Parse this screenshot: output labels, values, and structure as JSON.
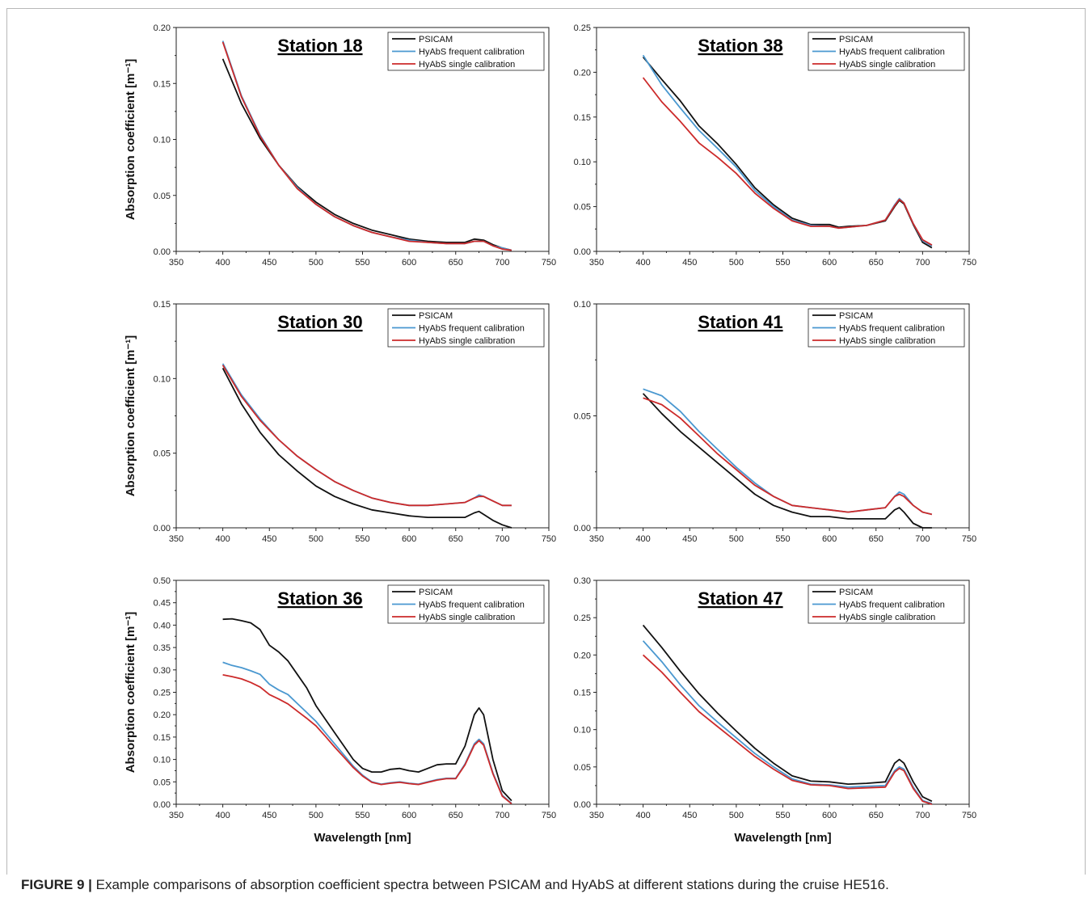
{
  "caption": {
    "label": "FIGURE 9 |",
    "text": " Example comparisons of absorption coefficient spectra between PSICAM and HyAbS at different stations during the cruise HE516."
  },
  "axis_titles": {
    "y": "Absorption coefficient [m⁻¹]",
    "x": "Wavelength [nm]"
  },
  "colors": {
    "PSICAM": "#111111",
    "HyAbS frequent calibration": "#4a98d0",
    "HyAbS single calibration": "#cc2a2a"
  },
  "chart_data": [
    {
      "type": "line",
      "title": "Station 18",
      "xlim": [
        350,
        750
      ],
      "ylim": [
        0,
        0.2
      ],
      "xticks": [
        "350",
        "400",
        "450",
        "500",
        "550",
        "600",
        "650",
        "700",
        "750"
      ],
      "yticks": [
        "0.00",
        "0.05",
        "0.10",
        "0.15",
        "0.20"
      ],
      "legend": "top-right",
      "x": [
        400,
        420,
        440,
        460,
        480,
        500,
        520,
        540,
        560,
        580,
        600,
        620,
        640,
        660,
        670,
        680,
        690,
        700,
        710
      ],
      "series": [
        {
          "name": "PSICAM",
          "values": [
            0.172,
            0.132,
            0.101,
            0.077,
            0.058,
            0.044,
            0.033,
            0.025,
            0.019,
            0.015,
            0.011,
            0.009,
            0.008,
            0.008,
            0.011,
            0.01,
            0.006,
            0.003,
            0.001
          ]
        },
        {
          "name": "HyAbS frequent calibration",
          "values": [
            0.188,
            0.139,
            0.104,
            0.077,
            0.057,
            0.042,
            0.031,
            0.023,
            0.017,
            0.013,
            0.01,
            0.008,
            0.007,
            0.007,
            0.009,
            0.009,
            0.005,
            0.003,
            0.001
          ]
        },
        {
          "name": "HyAbS single calibration",
          "values": [
            0.187,
            0.138,
            0.103,
            0.077,
            0.056,
            0.042,
            0.031,
            0.023,
            0.017,
            0.013,
            0.009,
            0.008,
            0.007,
            0.007,
            0.009,
            0.009,
            0.005,
            0.002,
            0.001
          ]
        }
      ]
    },
    {
      "type": "line",
      "title": "Station 38",
      "xlim": [
        350,
        750
      ],
      "ylim": [
        0,
        0.25
      ],
      "xticks": [
        "350",
        "400",
        "450",
        "500",
        "550",
        "600",
        "650",
        "700",
        "750"
      ],
      "yticks": [
        "0.00",
        "0.05",
        "0.10",
        "0.15",
        "0.20",
        "0.25"
      ],
      "legend": "top-right",
      "x": [
        400,
        420,
        440,
        460,
        480,
        500,
        520,
        540,
        560,
        580,
        600,
        610,
        620,
        640,
        660,
        670,
        675,
        680,
        690,
        700,
        710
      ],
      "series": [
        {
          "name": "PSICAM",
          "values": [
            0.217,
            0.192,
            0.168,
            0.14,
            0.12,
            0.097,
            0.071,
            0.052,
            0.037,
            0.03,
            0.03,
            0.027,
            0.028,
            0.029,
            0.034,
            0.05,
            0.057,
            0.053,
            0.03,
            0.01,
            0.004
          ]
        },
        {
          "name": "HyAbS frequent calibration",
          "values": [
            0.219,
            0.186,
            0.16,
            0.135,
            0.115,
            0.094,
            0.068,
            0.05,
            0.035,
            0.029,
            0.028,
            0.026,
            0.027,
            0.029,
            0.035,
            0.052,
            0.059,
            0.054,
            0.031,
            0.012,
            0.006
          ]
        },
        {
          "name": "HyAbS single calibration",
          "values": [
            0.194,
            0.167,
            0.145,
            0.121,
            0.105,
            0.087,
            0.065,
            0.048,
            0.034,
            0.028,
            0.028,
            0.026,
            0.027,
            0.029,
            0.035,
            0.051,
            0.058,
            0.054,
            0.031,
            0.013,
            0.007
          ]
        }
      ]
    },
    {
      "type": "line",
      "title": "Station 30",
      "xlim": [
        350,
        750
      ],
      "ylim": [
        0,
        0.15
      ],
      "xticks": [
        "350",
        "400",
        "450",
        "500",
        "550",
        "600",
        "650",
        "700",
        "750"
      ],
      "yticks": [
        "0.00",
        "0.05",
        "0.10",
        "0.15"
      ],
      "legend": "top-right",
      "x": [
        400,
        420,
        440,
        460,
        480,
        500,
        520,
        540,
        560,
        580,
        600,
        620,
        640,
        660,
        670,
        675,
        680,
        690,
        700,
        710
      ],
      "series": [
        {
          "name": "PSICAM",
          "values": [
            0.107,
            0.083,
            0.064,
            0.049,
            0.038,
            0.028,
            0.021,
            0.016,
            0.012,
            0.01,
            0.008,
            0.007,
            0.007,
            0.007,
            0.01,
            0.011,
            0.009,
            0.005,
            0.002,
            0.0
          ]
        },
        {
          "name": "HyAbS frequent calibration",
          "values": [
            0.11,
            0.089,
            0.073,
            0.059,
            0.048,
            0.039,
            0.031,
            0.025,
            0.02,
            0.017,
            0.015,
            0.015,
            0.016,
            0.017,
            0.02,
            0.022,
            0.021,
            0.018,
            0.015,
            0.015
          ]
        },
        {
          "name": "HyAbS single calibration",
          "values": [
            0.109,
            0.088,
            0.072,
            0.059,
            0.048,
            0.039,
            0.031,
            0.025,
            0.02,
            0.017,
            0.015,
            0.015,
            0.016,
            0.017,
            0.02,
            0.021,
            0.021,
            0.018,
            0.015,
            0.015
          ]
        }
      ]
    },
    {
      "type": "line",
      "title": "Station 41",
      "xlim": [
        350,
        750
      ],
      "ylim": [
        0,
        0.1
      ],
      "xticks": [
        "350",
        "400",
        "450",
        "500",
        "550",
        "600",
        "650",
        "700",
        "750"
      ],
      "yticks": [
        "0.00",
        "0.05",
        "0.10"
      ],
      "legend": "top-right",
      "x": [
        400,
        420,
        440,
        460,
        480,
        500,
        520,
        540,
        560,
        580,
        600,
        620,
        640,
        660,
        670,
        675,
        680,
        690,
        700,
        710
      ],
      "series": [
        {
          "name": "PSICAM",
          "values": [
            0.06,
            0.051,
            0.043,
            0.036,
            0.029,
            0.022,
            0.015,
            0.01,
            0.007,
            0.005,
            0.005,
            0.004,
            0.004,
            0.004,
            0.008,
            0.009,
            0.007,
            0.002,
            0.0,
            0.0
          ]
        },
        {
          "name": "HyAbS frequent calibration",
          "values": [
            0.062,
            0.059,
            0.052,
            0.043,
            0.035,
            0.027,
            0.02,
            0.014,
            0.01,
            0.009,
            0.008,
            0.007,
            0.008,
            0.009,
            0.014,
            0.016,
            0.015,
            0.01,
            0.007,
            0.006
          ]
        },
        {
          "name": "HyAbS single calibration",
          "values": [
            0.058,
            0.055,
            0.049,
            0.041,
            0.033,
            0.026,
            0.019,
            0.014,
            0.01,
            0.009,
            0.008,
            0.007,
            0.008,
            0.009,
            0.014,
            0.015,
            0.014,
            0.01,
            0.007,
            0.006
          ]
        }
      ]
    },
    {
      "type": "line",
      "title": "Station 36",
      "xlim": [
        350,
        750
      ],
      "ylim": [
        0,
        0.5
      ],
      "xticks": [
        "350",
        "400",
        "450",
        "500",
        "550",
        "600",
        "650",
        "700",
        "750"
      ],
      "yticks": [
        "0.00",
        "0.05",
        "0.10",
        "0.15",
        "0.20",
        "0.25",
        "0.30",
        "0.35",
        "0.40",
        "0.45",
        "0.50"
      ],
      "legend": "top-right",
      "x": [
        400,
        410,
        420,
        430,
        440,
        450,
        460,
        470,
        480,
        490,
        500,
        510,
        520,
        530,
        540,
        550,
        560,
        570,
        580,
        590,
        600,
        610,
        620,
        630,
        640,
        650,
        660,
        670,
        675,
        680,
        690,
        700,
        710
      ],
      "series": [
        {
          "name": "PSICAM",
          "values": [
            0.413,
            0.414,
            0.41,
            0.405,
            0.39,
            0.355,
            0.34,
            0.32,
            0.29,
            0.26,
            0.22,
            0.19,
            0.16,
            0.13,
            0.1,
            0.08,
            0.072,
            0.072,
            0.078,
            0.08,
            0.075,
            0.072,
            0.08,
            0.088,
            0.09,
            0.09,
            0.13,
            0.2,
            0.215,
            0.2,
            0.1,
            0.03,
            0.008
          ]
        },
        {
          "name": "HyAbS frequent calibration",
          "values": [
            0.317,
            0.31,
            0.305,
            0.298,
            0.29,
            0.268,
            0.255,
            0.245,
            0.225,
            0.205,
            0.185,
            0.16,
            0.135,
            0.11,
            0.085,
            0.065,
            0.05,
            0.045,
            0.048,
            0.05,
            0.047,
            0.045,
            0.05,
            0.055,
            0.058,
            0.058,
            0.09,
            0.135,
            0.145,
            0.135,
            0.07,
            0.02,
            0.002
          ]
        },
        {
          "name": "HyAbS single calibration",
          "values": [
            0.289,
            0.285,
            0.28,
            0.272,
            0.262,
            0.245,
            0.235,
            0.224,
            0.208,
            0.192,
            0.175,
            0.152,
            0.128,
            0.105,
            0.082,
            0.063,
            0.049,
            0.044,
            0.047,
            0.049,
            0.046,
            0.044,
            0.049,
            0.054,
            0.057,
            0.057,
            0.088,
            0.132,
            0.142,
            0.132,
            0.068,
            0.018,
            0.001
          ]
        }
      ]
    },
    {
      "type": "line",
      "title": "Station 47",
      "xlim": [
        350,
        750
      ],
      "ylim": [
        0,
        0.3
      ],
      "xticks": [
        "350",
        "400",
        "450",
        "500",
        "550",
        "600",
        "650",
        "700",
        "750"
      ],
      "yticks": [
        "0.00",
        "0.05",
        "0.10",
        "0.15",
        "0.20",
        "0.25",
        "0.30"
      ],
      "legend": "top-right",
      "x": [
        400,
        420,
        440,
        460,
        480,
        500,
        520,
        540,
        560,
        580,
        600,
        620,
        640,
        660,
        670,
        675,
        680,
        690,
        700,
        710
      ],
      "series": [
        {
          "name": "PSICAM",
          "values": [
            0.24,
            0.21,
            0.178,
            0.148,
            0.122,
            0.098,
            0.075,
            0.055,
            0.038,
            0.031,
            0.03,
            0.027,
            0.028,
            0.03,
            0.055,
            0.06,
            0.055,
            0.03,
            0.01,
            0.004
          ]
        },
        {
          "name": "HyAbS frequent calibration",
          "values": [
            0.219,
            0.191,
            0.16,
            0.132,
            0.11,
            0.089,
            0.068,
            0.05,
            0.034,
            0.027,
            0.026,
            0.023,
            0.024,
            0.025,
            0.045,
            0.05,
            0.047,
            0.023,
            0.005,
            0.001
          ]
        },
        {
          "name": "HyAbS single calibration",
          "values": [
            0.2,
            0.177,
            0.15,
            0.124,
            0.104,
            0.084,
            0.064,
            0.047,
            0.032,
            0.026,
            0.025,
            0.021,
            0.022,
            0.023,
            0.043,
            0.048,
            0.045,
            0.021,
            0.004,
            0.0
          ]
        }
      ]
    }
  ]
}
